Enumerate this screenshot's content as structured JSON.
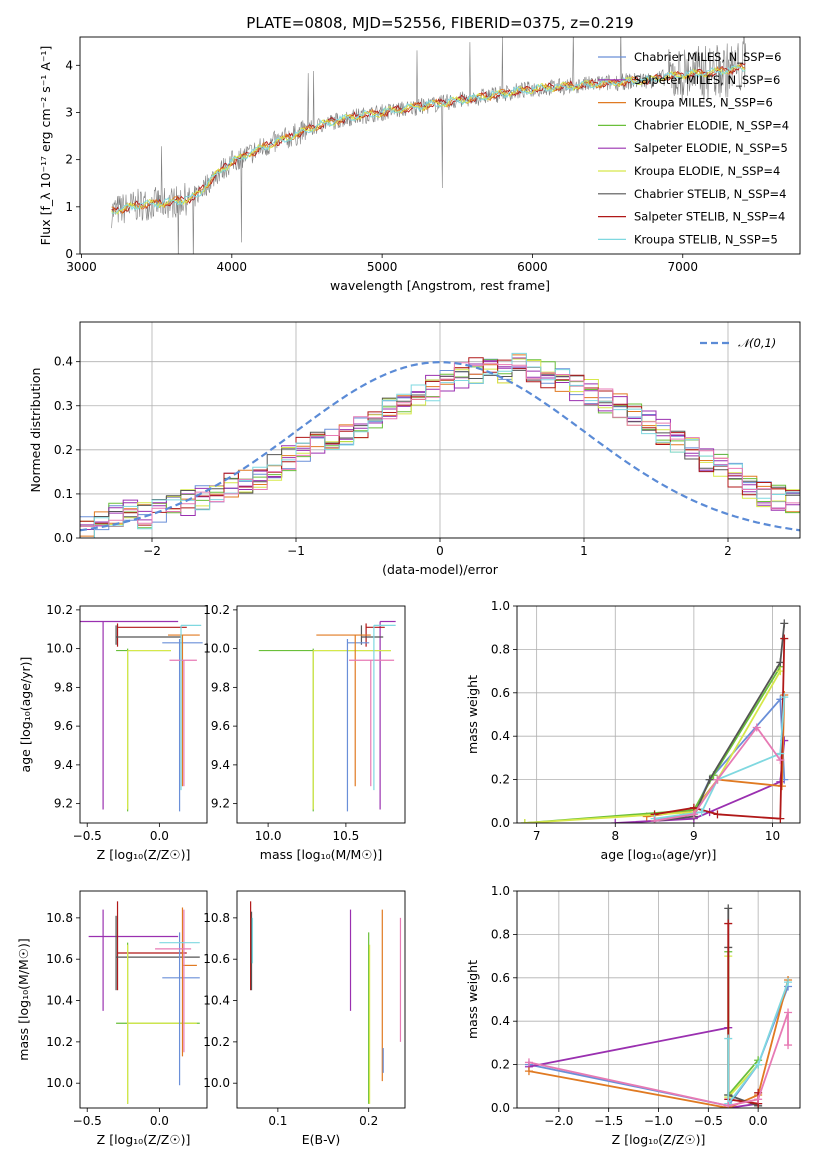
{
  "palette": {
    "Chabrier MILES": "#6a8fd8",
    "Salpeter MILES": "#9a30b0",
    "Kroupa MILES": "#e07a22",
    "Chabrier ELODIE": "#6abf3a",
    "Salpeter ELODIE": "#9a30b0",
    "Kroupa ELODIE": "#d6e84a",
    "Chabrier STELIB": "#555555",
    "Salpeter STELIB": "#b01818",
    "Kroupa STELIB": "#7fd8e0",
    "pink": "#e77ab4"
  },
  "chart_data": [
    {
      "id": "spectrum",
      "type": "line",
      "title": "PLATE=0808, MJD=52556, FIBERID=0375, z=0.219",
      "xlabel": "wavelength [Angstrom, rest frame]",
      "ylabel": "Flux [f_λ 10⁻¹⁷ erg cm⁻² s⁻¹ A⁻¹]",
      "xlim": [
        2990,
        7780
      ],
      "ylim": [
        0,
        4.6
      ],
      "xticks": [
        3000,
        4000,
        5000,
        6000,
        7000
      ],
      "yticks": [
        0,
        1,
        2,
        3,
        4
      ],
      "continuum_x": [
        3200,
        3400,
        3600,
        3750,
        3900,
        4000,
        4200,
        4400,
        4600,
        4800,
        5000,
        5200,
        5400,
        5600,
        5800,
        6000,
        6200,
        6400,
        6600,
        6800,
        7000,
        7200,
        7400
      ],
      "continuum_y": [
        0.9,
        1.05,
        1.1,
        1.2,
        1.7,
        1.95,
        2.25,
        2.5,
        2.75,
        2.9,
        3.0,
        3.1,
        3.2,
        3.3,
        3.4,
        3.5,
        3.55,
        3.6,
        3.65,
        3.7,
        3.8,
        3.85,
        3.95
      ],
      "legend_position": "upper-right",
      "legend": [
        {
          "name": "Chabrier MILES, N_SSP=6",
          "color": "#6a8fd8"
        },
        {
          "name": "Salpeter MILES, N_SSP=6",
          "color": "#9a30b0"
        },
        {
          "name": "Kroupa MILES, N_SSP=6",
          "color": "#e07a22"
        },
        {
          "name": "Chabrier ELODIE, N_SSP=4",
          "color": "#6abf3a"
        },
        {
          "name": "Salpeter ELODIE, N_SSP=5",
          "color": "#9a30b0"
        },
        {
          "name": "Kroupa ELODIE, N_SSP=4",
          "color": "#d6e84a"
        },
        {
          "name": "Chabrier STELIB, N_SSP=4",
          "color": "#555555"
        },
        {
          "name": "Salpeter STELIB, N_SSP=4",
          "color": "#b01818"
        },
        {
          "name": "Kroupa STELIB, N_SSP=5",
          "color": "#7fd8e0"
        }
      ]
    },
    {
      "id": "residuals",
      "type": "line",
      "xlabel": "(data-model)/error",
      "ylabel": "Normed distribution",
      "xlim": [
        -2.5,
        2.5
      ],
      "ylim": [
        0,
        0.49
      ],
      "xticks": [
        -2,
        -1,
        0,
        1,
        2
      ],
      "yticks": [
        0.0,
        0.1,
        0.2,
        0.3,
        0.4
      ],
      "grid": true,
      "legend_position": "upper-right",
      "gaussian": {
        "name": "𝒩(0,1)",
        "mu": 0,
        "sigma": 1,
        "color": "#5b8bd6"
      },
      "bin_width": 0.1,
      "hist_base": [
        0.02,
        0.03,
        0.05,
        0.06,
        0.05,
        0.06,
        0.07,
        0.08,
        0.09,
        0.1,
        0.12,
        0.13,
        0.14,
        0.16,
        0.18,
        0.2,
        0.22,
        0.23,
        0.24,
        0.25,
        0.27,
        0.29,
        0.31,
        0.33,
        0.34,
        0.36,
        0.37,
        0.38,
        0.39,
        0.38,
        0.39,
        0.38,
        0.37,
        0.36,
        0.34,
        0.33,
        0.31,
        0.3,
        0.28,
        0.26,
        0.24,
        0.22,
        0.2,
        0.18,
        0.16,
        0.14,
        0.12,
        0.1,
        0.09,
        0.08
      ]
    },
    {
      "id": "age-vs-Z",
      "type": "errorbar",
      "xlabel": "Z [log₁₀(Z/Z☉)]",
      "ylabel": "age [log₁₀(age/yr)]",
      "xlim": [
        -0.55,
        0.33
      ],
      "ylim": [
        9.1,
        10.22
      ],
      "xticks": [
        -0.5,
        0.0
      ],
      "yticks": [
        9.2,
        9.4,
        9.6,
        9.8,
        10.0,
        10.2
      ],
      "points": [
        {
          "x": -0.39,
          "y": 10.14,
          "xerr": [
            0.16,
            0.52
          ],
          "yerr": [
            0.97,
            0.0
          ],
          "color": "#9a30b0"
        },
        {
          "x": -0.29,
          "y": 10.11,
          "xerr": [
            0.0,
            0.48
          ],
          "yerr": [
            0.1,
            0.02
          ],
          "color": "#b01818"
        },
        {
          "x": -0.3,
          "y": 10.06,
          "xerr": [
            0.0,
            0.45
          ],
          "yerr": [
            0.04,
            0.06
          ],
          "color": "#555555"
        },
        {
          "x": -0.22,
          "y": 9.99,
          "xerr": [
            0.08,
            0.3
          ],
          "yerr": [
            0.83,
            0.01
          ],
          "color": "#6abf3a"
        },
        {
          "x": -0.22,
          "y": 9.99,
          "xerr": [
            0.0,
            0.3
          ],
          "yerr": [
            0.82,
            0.0
          ],
          "color": "#d6e84a"
        },
        {
          "x": 0.14,
          "y": 10.03,
          "xerr": [
            0.12,
            0.16
          ],
          "yerr": [
            0.87,
            0.02
          ],
          "color": "#6a8fd8"
        },
        {
          "x": 0.16,
          "y": 10.07,
          "xerr": [
            0.1,
            0.12
          ],
          "yerr": [
            0.78,
            0.0
          ],
          "color": "#e07a22"
        },
        {
          "x": 0.17,
          "y": 9.94,
          "xerr": [
            0.1,
            0.09
          ],
          "yerr": [
            0.65,
            0.0
          ],
          "color": "#e77ab4"
        },
        {
          "x": 0.15,
          "y": 10.12,
          "xerr": [
            0.0,
            0.14
          ],
          "yerr": [
            0.85,
            0.0
          ],
          "color": "#7fd8e0"
        }
      ]
    },
    {
      "id": "age-vs-mass",
      "type": "errorbar",
      "xlabel": "mass [log₁₀(M/M☉)]",
      "ylim": [
        9.1,
        10.22
      ],
      "xlim": [
        9.8,
        10.88
      ],
      "xticks": [
        10.0,
        10.5
      ],
      "yticks": [
        9.2,
        9.4,
        9.6,
        9.8,
        10.0,
        10.2
      ],
      "points": [
        {
          "x": 10.72,
          "y": 10.14,
          "xerr": [
            0.0,
            0.1
          ],
          "yerr": [
            0.97,
            0.0
          ],
          "color": "#9a30b0"
        },
        {
          "x": 10.63,
          "y": 10.11,
          "xerr": [
            0.0,
            0.12
          ],
          "yerr": [
            0.1,
            0.02
          ],
          "color": "#b01818"
        },
        {
          "x": 10.6,
          "y": 10.06,
          "xerr": [
            0.0,
            0.14
          ],
          "yerr": [
            0.04,
            0.06
          ],
          "color": "#555555"
        },
        {
          "x": 10.29,
          "y": 9.99,
          "xerr": [
            0.35,
            0.5
          ],
          "yerr": [
            0.83,
            0.01
          ],
          "color": "#6abf3a"
        },
        {
          "x": 10.29,
          "y": 9.99,
          "xerr": [
            0.0,
            0.5
          ],
          "yerr": [
            0.82,
            0.0
          ],
          "color": "#d6e84a"
        },
        {
          "x": 10.51,
          "y": 10.03,
          "xerr": [
            0.0,
            0.14
          ],
          "yerr": [
            0.87,
            0.02
          ],
          "color": "#6a8fd8"
        },
        {
          "x": 10.56,
          "y": 10.07,
          "xerr": [
            0.25,
            0.1
          ],
          "yerr": [
            0.78,
            0.0
          ],
          "color": "#e07a22"
        },
        {
          "x": 10.66,
          "y": 9.94,
          "xerr": [
            0.14,
            0.15
          ],
          "yerr": [
            0.65,
            0.0
          ],
          "color": "#e77ab4"
        },
        {
          "x": 10.68,
          "y": 10.12,
          "xerr": [
            0.0,
            0.14
          ],
          "yerr": [
            0.85,
            0.0
          ],
          "color": "#7fd8e0"
        }
      ]
    },
    {
      "id": "weight-vs-age",
      "type": "line",
      "xlabel": "age [log₁₀(age/yr)]",
      "ylabel": "mass weight",
      "xlim": [
        6.75,
        10.35
      ],
      "ylim": [
        0,
        1.0
      ],
      "xticks": [
        7,
        8,
        9,
        10
      ],
      "yticks": [
        0.0,
        0.2,
        0.4,
        0.6,
        0.8,
        1.0
      ],
      "grid": true,
      "series": [
        {
          "color": "#6a8fd8",
          "x": [
            8.5,
            9.0,
            9.2,
            10.1,
            10.15
          ],
          "y": [
            0.01,
            0.05,
            0.2,
            0.57,
            0.2
          ]
        },
        {
          "color": "#9a30b0",
          "x": [
            8.0,
            9.0,
            9.2,
            10.1,
            10.15
          ],
          "y": [
            0.0,
            0.02,
            0.05,
            0.19,
            0.38
          ]
        },
        {
          "color": "#e07a22",
          "x": [
            8.4,
            9.0,
            9.3,
            10.12,
            10.15
          ],
          "y": [
            0.03,
            0.06,
            0.2,
            0.17,
            0.59
          ]
        },
        {
          "color": "#6abf3a",
          "x": [
            6.85,
            9.0,
            9.25,
            10.1
          ],
          "y": [
            0.0,
            0.06,
            0.22,
            0.72
          ]
        },
        {
          "color": "#d6e84a",
          "x": [
            6.85,
            9.0,
            9.3,
            10.1
          ],
          "y": [
            0.0,
            0.05,
            0.2,
            0.7
          ]
        },
        {
          "color": "#555555",
          "x": [
            8.5,
            9.0,
            9.2,
            10.1,
            10.15
          ],
          "y": [
            0.01,
            0.03,
            0.2,
            0.74,
            0.92
          ]
        },
        {
          "color": "#b01818",
          "x": [
            8.5,
            9.0,
            9.3,
            10.1,
            10.15
          ],
          "y": [
            0.04,
            0.07,
            0.04,
            0.02,
            0.85
          ]
        },
        {
          "color": "#7fd8e0",
          "x": [
            8.5,
            9.1,
            9.3,
            10.1,
            10.15
          ],
          "y": [
            0.02,
            0.05,
            0.2,
            0.32,
            0.58
          ]
        },
        {
          "color": "#e77ab4",
          "x": [
            8.5,
            9.0,
            9.3,
            9.8,
            10.1
          ],
          "y": [
            0.01,
            0.04,
            0.2,
            0.44,
            0.29
          ]
        }
      ]
    },
    {
      "id": "mass-vs-Z",
      "type": "errorbar",
      "xlabel": "Z [log₁₀(Z/Z☉)]",
      "ylabel": "mass [log₁₀(M/M☉)]",
      "xlim": [
        -0.55,
        0.33
      ],
      "ylim": [
        9.88,
        10.93
      ],
      "xticks": [
        -0.5,
        0.0
      ],
      "yticks": [
        10.0,
        10.2,
        10.4,
        10.6,
        10.8
      ],
      "points": [
        {
          "x": -0.39,
          "y": 10.71,
          "xerr": [
            0.1,
            0.52
          ],
          "yerr": [
            0.36,
            0.13
          ],
          "color": "#9a30b0"
        },
        {
          "x": -0.29,
          "y": 10.63,
          "xerr": [
            0.0,
            0.48
          ],
          "yerr": [
            0.18,
            0.25
          ],
          "color": "#b01818"
        },
        {
          "x": -0.3,
          "y": 10.61,
          "xerr": [
            0.0,
            0.58
          ],
          "yerr": [
            0.16,
            0.2
          ],
          "color": "#555555"
        },
        {
          "x": -0.22,
          "y": 10.29,
          "xerr": [
            0.08,
            0.5
          ],
          "yerr": [
            0.39,
            0.39
          ],
          "color": "#6abf3a"
        },
        {
          "x": -0.22,
          "y": 10.29,
          "xerr": [
            0.0,
            0.48
          ],
          "yerr": [
            0.39,
            0.38
          ],
          "color": "#d6e84a"
        },
        {
          "x": 0.14,
          "y": 10.51,
          "xerr": [
            0.12,
            0.14
          ],
          "yerr": [
            0.52,
            0.22
          ],
          "color": "#6a8fd8"
        },
        {
          "x": 0.16,
          "y": 10.57,
          "xerr": [
            0.0,
            0.1
          ],
          "yerr": [
            0.44,
            0.28
          ],
          "color": "#e07a22"
        },
        {
          "x": 0.17,
          "y": 10.65,
          "xerr": [
            0.2,
            0.05
          ],
          "yerr": [
            0.5,
            0.19
          ],
          "color": "#e77ab4"
        },
        {
          "x": 0.16,
          "y": 10.68,
          "xerr": [
            0.16,
            0.12
          ],
          "yerr": [
            0.0,
            0.0
          ],
          "color": "#7fd8e0"
        }
      ]
    },
    {
      "id": "mass-vs-EBV",
      "type": "errorbar",
      "xlabel": "E(B-V)",
      "xlim": [
        0.055,
        0.24
      ],
      "ylim": [
        9.88,
        10.93
      ],
      "xticks": [
        0.1,
        0.2
      ],
      "yticks": [
        10.0,
        10.2,
        10.4,
        10.6,
        10.8
      ],
      "points": [
        {
          "x": 0.07,
          "y": 10.65,
          "yerr": [
            0.2,
            0.23
          ],
          "color": "#b01818"
        },
        {
          "x": 0.071,
          "y": 10.63,
          "yerr": [
            0.18,
            0.2
          ],
          "color": "#555555"
        },
        {
          "x": 0.072,
          "y": 10.68,
          "yerr": [
            0.1,
            0.12
          ],
          "color": "#7fd8e0"
        },
        {
          "x": 0.18,
          "y": 10.71,
          "yerr": [
            0.36,
            0.13
          ],
          "color": "#9a30b0"
        },
        {
          "x": 0.2,
          "y": 10.29,
          "yerr": [
            0.39,
            0.44
          ],
          "color": "#6abf3a"
        },
        {
          "x": 0.201,
          "y": 10.29,
          "yerr": [
            0.39,
            0.38
          ],
          "color": "#d6e84a"
        },
        {
          "x": 0.215,
          "y": 10.51,
          "yerr": [
            0.5,
            0.33
          ],
          "color": "#e07a22"
        },
        {
          "x": 0.216,
          "y": 10.05,
          "yerr": [
            0.0,
            0.12
          ],
          "color": "#6a8fd8"
        },
        {
          "x": 0.235,
          "y": 10.5,
          "yerr": [
            0.3,
            0.3
          ],
          "color": "#e77ab4"
        }
      ]
    },
    {
      "id": "weight-vs-Z",
      "type": "line",
      "xlabel": "Z [log₁₀(Z/Z☉)]",
      "ylabel": "mass weight",
      "xlim": [
        -2.42,
        0.42
      ],
      "ylim": [
        0,
        1.0
      ],
      "xticks": [
        -2.0,
        -1.5,
        -1.0,
        -0.5,
        0.0
      ],
      "yticks": [
        0.0,
        0.2,
        0.4,
        0.6,
        0.8,
        1.0
      ],
      "grid": true,
      "series": [
        {
          "color": "#6a8fd8",
          "x": [
            -2.3,
            -0.3,
            0.0,
            0.3
          ],
          "y": [
            0.2,
            0.01,
            0.2,
            0.56
          ]
        },
        {
          "color": "#9a30b0",
          "x": [
            -2.3,
            -0.3,
            -0.3,
            0.0
          ],
          "y": [
            0.19,
            0.37,
            0.0,
            0.02
          ]
        },
        {
          "color": "#e07a22",
          "x": [
            -2.3,
            -0.3,
            0.0,
            0.3
          ],
          "y": [
            0.17,
            0.0,
            0.06,
            0.59
          ]
        },
        {
          "color": "#6abf3a",
          "x": [
            -0.3,
            -0.3,
            0.0
          ],
          "y": [
            0.72,
            0.06,
            0.22
          ]
        },
        {
          "color": "#d6e84a",
          "x": [
            -0.3,
            -0.3,
            0.0
          ],
          "y": [
            0.7,
            0.05,
            0.2
          ]
        },
        {
          "color": "#555555",
          "x": [
            -0.3,
            -0.3,
            -0.3,
            0.0
          ],
          "y": [
            0.92,
            0.74,
            0.06,
            0.01
          ]
        },
        {
          "color": "#b01818",
          "x": [
            -0.3,
            -0.3,
            0.0,
            0.0
          ],
          "y": [
            0.85,
            0.04,
            0.02,
            0.07
          ]
        },
        {
          "color": "#7fd8e0",
          "x": [
            -0.3,
            -0.3,
            0.0,
            0.3
          ],
          "y": [
            0.32,
            0.02,
            0.2,
            0.58
          ]
        },
        {
          "color": "#e77ab4",
          "x": [
            -2.3,
            -0.3,
            0.0,
            0.3,
            0.3
          ],
          "y": [
            0.21,
            0.01,
            0.04,
            0.44,
            0.29
          ]
        }
      ]
    }
  ]
}
